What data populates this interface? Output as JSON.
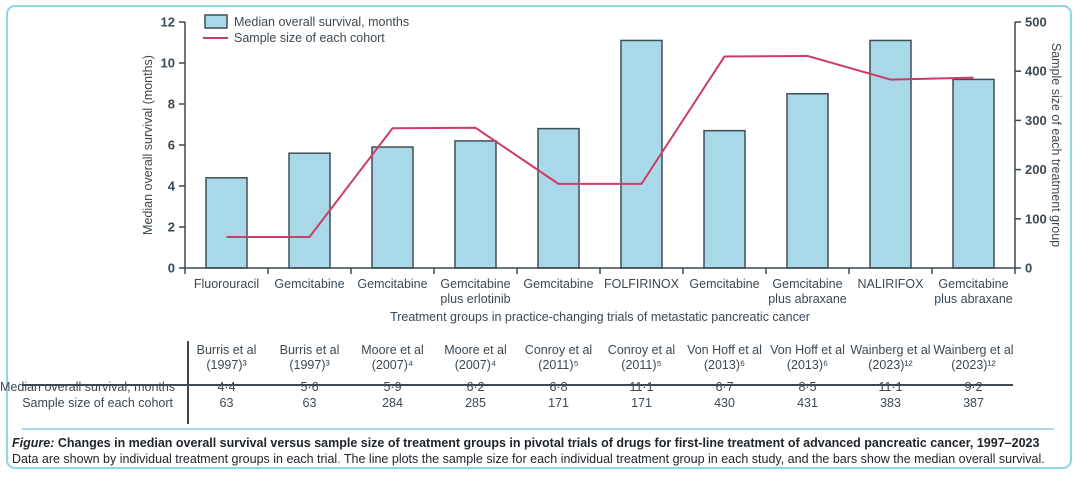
{
  "chart_data": {
    "type": "bar",
    "categories": [
      "Fluorouracil",
      "Gemcitabine",
      "Gemcitabine",
      "Gemcitabine\nplus erlotinib",
      "Gemcitabine",
      "FOLFIRINOX",
      "Gemcitabine",
      "Gemcitabine\nplus abraxane",
      "NALIRIFOX",
      "Gemcitabine\nplus abraxane"
    ],
    "series": [
      {
        "name": "Median overall survival, months",
        "type": "bar",
        "axis": "left",
        "values": [
          4.4,
          5.6,
          5.9,
          6.2,
          6.8,
          11.1,
          6.7,
          8.5,
          11.1,
          9.2
        ]
      },
      {
        "name": "Sample size of each cohort",
        "type": "line",
        "axis": "right",
        "values": [
          63,
          63,
          284,
          285,
          171,
          171,
          430,
          431,
          383,
          387
        ]
      }
    ],
    "left_axis": {
      "label": "Median overall survival (months)",
      "range": [
        0,
        12
      ],
      "ticks": [
        0,
        2,
        4,
        6,
        8,
        10,
        12
      ]
    },
    "right_axis": {
      "label": "Sample size of each treatment group",
      "range": [
        0,
        500
      ],
      "ticks": [
        0,
        100,
        200,
        300,
        400,
        500
      ]
    },
    "xlabel": "Treatment groups in practice-changing trials of metastatic pancreatic cancer",
    "legend_position": "top-left",
    "grid": false,
    "colors": {
      "bar_fill": "#a9d8e8",
      "bar_stroke": "#3e4e58",
      "line": "#cd3c64",
      "axis": "#3c4852"
    }
  },
  "table": {
    "row_labels": [
      "Median overall survival, months",
      "Sample size of each cohort"
    ],
    "studies": [
      {
        "line1": "Burris et al",
        "line2": "(1997)³"
      },
      {
        "line1": "Burris et al",
        "line2": "(1997)³"
      },
      {
        "line1": "Moore et al",
        "line2": "(2007)⁴"
      },
      {
        "line1": "Moore et al",
        "line2": "(2007)⁴"
      },
      {
        "line1": "Conroy et al",
        "line2": "(2011)⁵"
      },
      {
        "line1": "Conroy et al",
        "line2": "(2011)⁵"
      },
      {
        "line1": "Von Hoff et al",
        "line2": "(2013)⁶"
      },
      {
        "line1": "Von Hoff et al",
        "line2": "(2013)⁶"
      },
      {
        "line1": "Wainberg et al",
        "line2": "(2023)¹²"
      },
      {
        "line1": "Wainberg et al",
        "line2": "(2023)¹²"
      }
    ],
    "values_survival": [
      "4·4",
      "5·6",
      "5·9",
      "6·2",
      "6·8",
      "11·1",
      "6·7",
      "8·5",
      "11·1",
      "9·2"
    ],
    "values_sample": [
      "63",
      "63",
      "284",
      "285",
      "171",
      "171",
      "430",
      "431",
      "383",
      "387"
    ]
  },
  "caption": {
    "figure_label": "Figure:",
    "title": " Changes in median overall survival versus sample size of treatment groups in pivotal trials of drugs for first-line treatment of advanced pancreatic cancer, 1997–2023",
    "line2a": "Data are shown by individual treatment groups in each trial",
    "line2_dot": ".",
    "line2b": " The line plots the sample size for each individual treatment group in each study, and the bars show the median overall survival."
  }
}
